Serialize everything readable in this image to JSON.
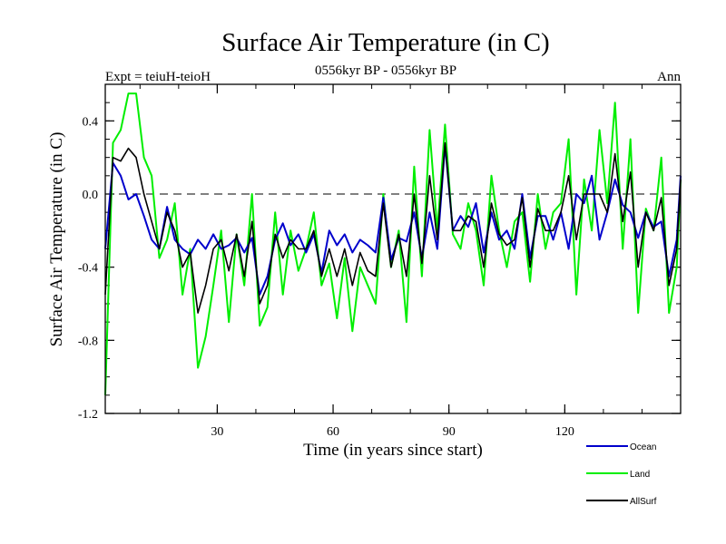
{
  "chart_data": {
    "type": "line",
    "title": "Surface Air Temperature (in C)",
    "subtitle": "0556kyr BP - 0556kyr BP",
    "left_label": "Expt = teiuH-teioH",
    "right_label": "Ann",
    "xlabel": "Time (in years since start)",
    "ylabel": "Surface Air Temperature (in C)",
    "xlim": [
      1,
      150
    ],
    "ylim": [
      -1.2,
      0.6
    ],
    "xticks": [
      30,
      60,
      90,
      120
    ],
    "yticks": [
      -1.2,
      -0.8,
      -0.4,
      0.0,
      0.4
    ],
    "ytick_labels": [
      "-1.2",
      "-0.8",
      "-0.4",
      "0.0",
      "0.4"
    ],
    "xtick_labels": [
      "30",
      "60",
      "90",
      "120"
    ],
    "reference_line": 0.0,
    "legend_position": "bottom-right",
    "series": [
      {
        "name": "Ocean",
        "color": "#0000cc",
        "x": [
          1,
          3,
          5,
          7,
          9,
          11,
          13,
          15,
          17,
          19,
          21,
          23,
          25,
          27,
          29,
          31,
          33,
          35,
          37,
          39,
          41,
          43,
          45,
          47,
          49,
          51,
          53,
          55,
          57,
          59,
          61,
          63,
          65,
          67,
          69,
          71,
          73,
          75,
          77,
          79,
          81,
          83,
          85,
          87,
          89,
          91,
          93,
          95,
          97,
          99,
          101,
          103,
          105,
          107,
          109,
          111,
          113,
          115,
          117,
          119,
          121,
          123,
          125,
          127,
          129,
          131,
          133,
          135,
          137,
          139,
          141,
          143,
          145,
          147,
          149,
          150
        ],
        "values": [
          -0.3,
          0.17,
          0.1,
          -0.03,
          0.0,
          -0.12,
          -0.25,
          -0.3,
          -0.07,
          -0.25,
          -0.3,
          -0.33,
          -0.25,
          -0.3,
          -0.22,
          -0.3,
          -0.28,
          -0.24,
          -0.32,
          -0.24,
          -0.55,
          -0.45,
          -0.25,
          -0.16,
          -0.28,
          -0.22,
          -0.32,
          -0.22,
          -0.43,
          -0.2,
          -0.28,
          -0.22,
          -0.32,
          -0.25,
          -0.28,
          -0.32,
          -0.02,
          -0.36,
          -0.24,
          -0.26,
          -0.1,
          -0.35,
          -0.1,
          -0.3,
          0.27,
          -0.2,
          -0.12,
          -0.18,
          -0.05,
          -0.32,
          -0.1,
          -0.25,
          -0.2,
          -0.3,
          0.0,
          -0.35,
          -0.12,
          -0.12,
          -0.25,
          -0.1,
          -0.3,
          0.0,
          -0.05,
          0.1,
          -0.25,
          -0.1,
          0.08,
          -0.06,
          -0.1,
          -0.24,
          -0.1,
          -0.18,
          -0.15,
          -0.45,
          -0.25,
          0.1
        ]
      },
      {
        "name": "Land",
        "color": "#00ee00",
        "x": [
          1,
          3,
          5,
          7,
          9,
          11,
          13,
          15,
          17,
          19,
          21,
          23,
          25,
          27,
          29,
          31,
          33,
          35,
          37,
          39,
          41,
          43,
          45,
          47,
          49,
          51,
          53,
          55,
          57,
          59,
          61,
          63,
          65,
          67,
          69,
          71,
          73,
          75,
          77,
          79,
          81,
          83,
          85,
          87,
          89,
          91,
          93,
          95,
          97,
          99,
          101,
          103,
          105,
          107,
          109,
          111,
          113,
          115,
          117,
          119,
          121,
          123,
          125,
          127,
          129,
          131,
          133,
          135,
          137,
          139,
          141,
          143,
          145,
          147,
          149,
          150
        ],
        "values": [
          -1.1,
          0.28,
          0.35,
          0.55,
          0.55,
          0.2,
          0.1,
          -0.35,
          -0.25,
          -0.05,
          -0.55,
          -0.3,
          -0.95,
          -0.78,
          -0.5,
          -0.2,
          -0.7,
          -0.22,
          -0.5,
          0.0,
          -0.72,
          -0.62,
          -0.1,
          -0.55,
          -0.2,
          -0.42,
          -0.3,
          -0.1,
          -0.5,
          -0.38,
          -0.68,
          -0.35,
          -0.75,
          -0.4,
          -0.5,
          -0.6,
          0.0,
          -0.4,
          -0.2,
          -0.7,
          0.15,
          -0.45,
          0.35,
          -0.2,
          0.38,
          -0.22,
          -0.3,
          -0.05,
          -0.2,
          -0.5,
          0.1,
          -0.2,
          -0.4,
          -0.15,
          -0.1,
          -0.48,
          0.0,
          -0.3,
          -0.1,
          -0.05,
          0.3,
          -0.55,
          0.08,
          -0.2,
          0.35,
          -0.05,
          0.5,
          -0.3,
          0.3,
          -0.65,
          -0.08,
          -0.2,
          0.2,
          -0.65,
          -0.4,
          0.08
        ]
      },
      {
        "name": "AllSurf",
        "color": "#000000",
        "x": [
          1,
          3,
          5,
          7,
          9,
          11,
          13,
          15,
          17,
          19,
          21,
          23,
          25,
          27,
          29,
          31,
          33,
          35,
          37,
          39,
          41,
          43,
          45,
          47,
          49,
          51,
          53,
          55,
          57,
          59,
          61,
          63,
          65,
          67,
          69,
          71,
          73,
          75,
          77,
          79,
          81,
          83,
          85,
          87,
          89,
          91,
          93,
          95,
          97,
          99,
          101,
          103,
          105,
          107,
          109,
          111,
          113,
          115,
          117,
          119,
          121,
          123,
          125,
          127,
          129,
          131,
          133,
          135,
          137,
          139,
          141,
          143,
          145,
          147,
          149,
          150
        ],
        "values": [
          -0.55,
          0.2,
          0.18,
          0.25,
          0.2,
          0.0,
          -0.15,
          -0.3,
          -0.1,
          -0.2,
          -0.4,
          -0.32,
          -0.65,
          -0.5,
          -0.3,
          -0.25,
          -0.42,
          -0.22,
          -0.45,
          -0.15,
          -0.6,
          -0.5,
          -0.22,
          -0.35,
          -0.25,
          -0.3,
          -0.3,
          -0.2,
          -0.45,
          -0.3,
          -0.45,
          -0.3,
          -0.5,
          -0.32,
          -0.42,
          -0.45,
          -0.05,
          -0.4,
          -0.22,
          -0.45,
          0.0,
          -0.38,
          0.1,
          -0.25,
          0.28,
          -0.2,
          -0.2,
          -0.12,
          -0.15,
          -0.4,
          -0.05,
          -0.22,
          -0.28,
          -0.25,
          -0.02,
          -0.4,
          -0.08,
          -0.2,
          -0.2,
          -0.1,
          0.1,
          -0.25,
          0.0,
          0.0,
          0.0,
          -0.1,
          0.22,
          -0.15,
          0.12,
          -0.4,
          -0.1,
          -0.2,
          -0.02,
          -0.5,
          -0.3,
          0.08
        ]
      }
    ]
  }
}
